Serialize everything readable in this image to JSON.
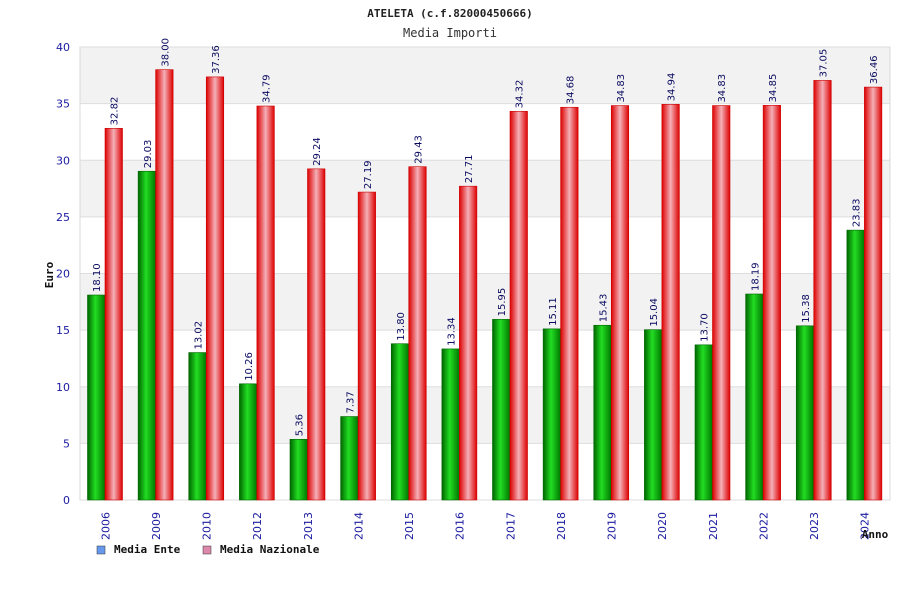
{
  "chart_data": {
    "type": "bar",
    "title": "ATELETA (c.f.82000450666)",
    "subtitle": "Media Importi",
    "ylabel": "Euro",
    "xlabel": "Anno",
    "ylim": [
      0,
      40
    ],
    "yticks": [
      0,
      5,
      10,
      15,
      20,
      25,
      30,
      35,
      40
    ],
    "grid": true,
    "legend_position": "bottom-left",
    "categories": [
      "2006",
      "2009",
      "2010",
      "2012",
      "2013",
      "2014",
      "2015",
      "2016",
      "2017",
      "2018",
      "2019",
      "2020",
      "2021",
      "2022",
      "2023",
      "2024"
    ],
    "series": [
      {
        "name": "Media Ente",
        "color": "#00aa00",
        "legend_color": "#6699ee",
        "values": [
          18.1,
          29.03,
          13.02,
          10.26,
          5.36,
          7.37,
          13.8,
          13.34,
          15.95,
          15.11,
          15.43,
          15.04,
          13.7,
          18.19,
          15.38,
          23.83
        ],
        "labels": [
          "18.10",
          "29.03",
          "13.02",
          "10.26",
          "5.36",
          "7.37",
          "13.80",
          "13.34",
          "15.95",
          "15.11",
          "15.43",
          "15.04",
          "13.70",
          "18.19",
          "15.38",
          "23.83"
        ]
      },
      {
        "name": "Media Nazionale",
        "color": "#ee1111",
        "legend_color": "#dd88aa",
        "values": [
          32.82,
          38.0,
          37.36,
          34.79,
          29.24,
          27.19,
          29.43,
          27.71,
          34.32,
          34.68,
          34.83,
          34.94,
          34.83,
          34.85,
          37.05,
          36.46
        ],
        "labels": [
          "32.82",
          "38.00",
          "37.36",
          "34.79",
          "29.24",
          "27.19",
          "29.43",
          "27.71",
          "34.32",
          "34.68",
          "34.83",
          "34.94",
          "34.83",
          "34.85",
          "37.05",
          "36.46"
        ]
      }
    ]
  }
}
